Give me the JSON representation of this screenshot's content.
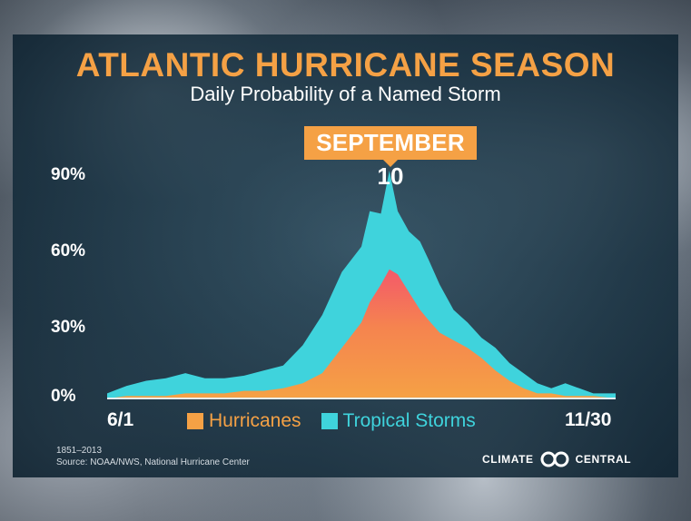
{
  "title": "ATLANTIC HURRICANE SEASON",
  "subtitle": "Daily Probability of a Named Storm",
  "callout": "SEPTEMBER 10",
  "source_years": "1851–2013",
  "source": "Source: NOAA/NWS, National Hurricane Center",
  "brand": {
    "left": "CLIMATE",
    "right": "CENTRAL"
  },
  "colors": {
    "hurricanes": "#f5a145",
    "tropical_storms": "#3fd3dc",
    "title": "#f5a145"
  },
  "chart_data": {
    "type": "area",
    "title": "Daily Probability of a Named Storm",
    "xlabel": "",
    "ylabel": "",
    "x_tick_labels": [
      "6/1",
      "11/30"
    ],
    "y_tick_labels": [
      "0%",
      "30%",
      "60%",
      "90%"
    ],
    "y_ticks": [
      0,
      30,
      60,
      90
    ],
    "ylim": [
      0,
      90
    ],
    "grid": false,
    "legend_position": "bottom-center",
    "annotation": {
      "label": "SEPTEMBER 10",
      "x": "9/10"
    },
    "x": [
      "6/1",
      "6/8",
      "6/15",
      "6/22",
      "6/29",
      "7/6",
      "7/13",
      "7/20",
      "7/27",
      "8/3",
      "8/10",
      "8/17",
      "8/24",
      "8/31",
      "9/3",
      "9/7",
      "9/10",
      "9/13",
      "9/17",
      "9/21",
      "9/24",
      "9/28",
      "10/3",
      "10/8",
      "10/13",
      "10/18",
      "10/23",
      "10/28",
      "11/2",
      "11/7",
      "11/12",
      "11/17",
      "11/22",
      "11/30"
    ],
    "series": [
      {
        "name": "Hurricanes",
        "values": [
          0,
          1,
          1,
          1,
          2,
          2,
          2,
          3,
          3,
          4,
          6,
          10,
          20,
          30,
          38,
          45,
          51,
          49,
          42,
          35,
          31,
          26,
          23,
          20,
          16,
          11,
          7,
          4,
          2,
          2,
          1,
          1,
          1,
          0
        ]
      },
      {
        "name": "Tropical Storms",
        "values": [
          2,
          5,
          7,
          8,
          10,
          8,
          8,
          9,
          11,
          13,
          21,
          33,
          50,
          60,
          74,
          73,
          90,
          74,
          66,
          62,
          55,
          45,
          35,
          30,
          24,
          20,
          14,
          10,
          6,
          4,
          6,
          4,
          2,
          2
        ]
      }
    ]
  }
}
